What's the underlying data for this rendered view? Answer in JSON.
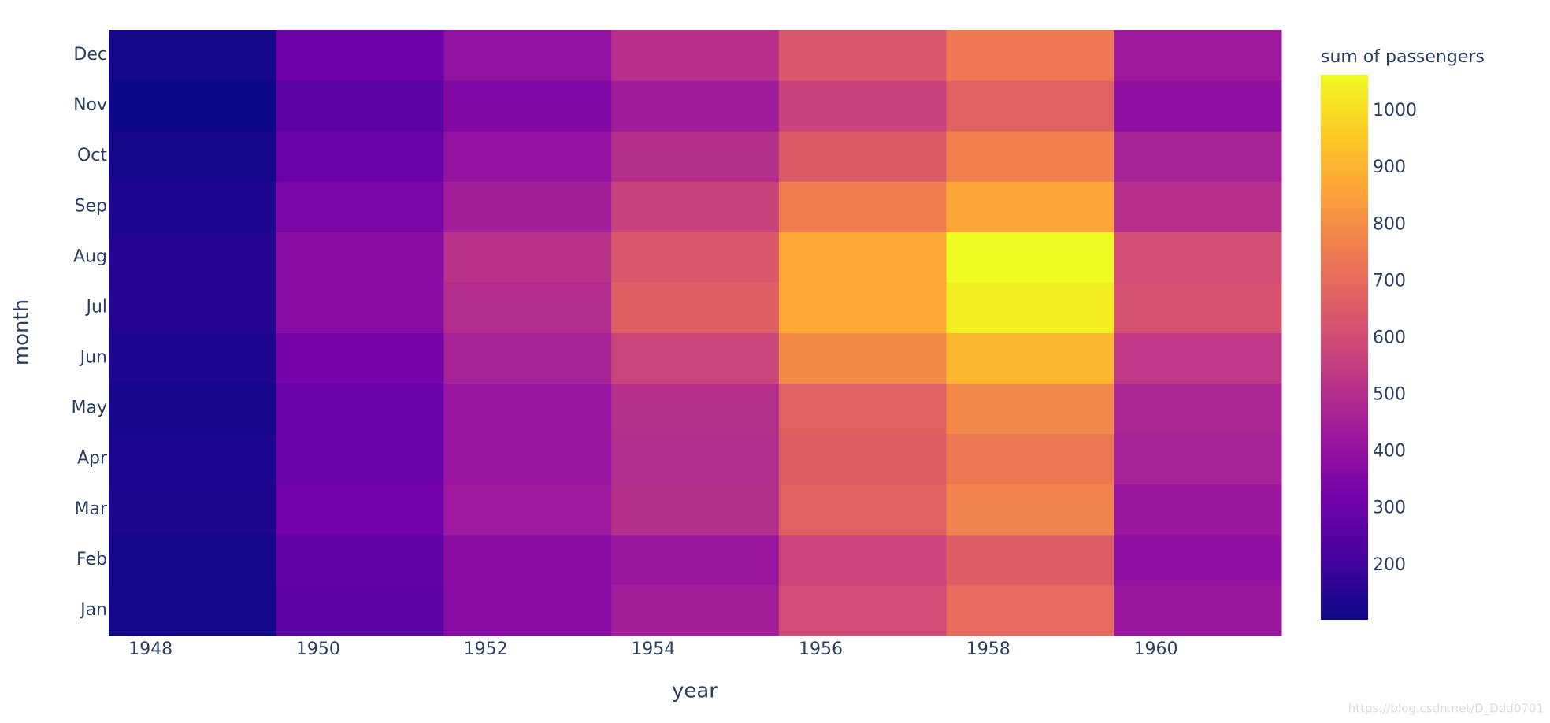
{
  "chart_data": {
    "type": "heatmap",
    "x_label": "year",
    "y_label": "month",
    "colorbar_title": "sum of passengers",
    "watermark": "https://blog.csdn.net/D_Ddd0701",
    "xbins": [
      1947.5,
      1949.5,
      1951.5,
      1953.5,
      1955.5,
      1957.5,
      1959.5,
      1961.5
    ],
    "xlim": [
      1947.5,
      1961.5
    ],
    "xticks": [
      1948,
      1950,
      1952,
      1954,
      1956,
      1958,
      1960
    ],
    "categories": [
      "Jan",
      "Feb",
      "Mar",
      "Apr",
      "May",
      "Jun",
      "Jul",
      "Aug",
      "Sep",
      "Oct",
      "Nov",
      "Dec"
    ],
    "z": [
      [
        112,
        260,
        367,
        446,
        599,
        700,
        417
      ],
      [
        118,
        276,
        376,
        421,
        578,
        660,
        391
      ],
      [
        132,
        319,
        429,
        502,
        673,
        768,
        419
      ],
      [
        129,
        298,
        416,
        496,
        661,
        744,
        461
      ],
      [
        121,
        297,
        412,
        504,
        673,
        783,
        472
      ],
      [
        135,
        327,
        461,
        579,
        796,
        907,
        535
      ],
      [
        148,
        369,
        494,
        666,
        878,
        1039,
        622
      ],
      [
        148,
        369,
        514,
        640,
        872,
        1064,
        606
      ],
      [
        136,
        342,
        446,
        571,
        759,
        867,
        508
      ],
      [
        119,
        295,
        402,
        503,
        653,
        766,
        461
      ],
      [
        104,
        260,
        352,
        440,
        576,
        672,
        390
      ],
      [
        118,
        306,
        395,
        507,
        642,
        742,
        432
      ]
    ],
    "zlim": [
      104,
      1064
    ],
    "zticks": [
      200,
      300,
      400,
      500,
      600,
      700,
      800,
      900,
      1000
    ],
    "colorscale": [
      "#0d0887",
      "#46039f",
      "#7201a8",
      "#9c179e",
      "#bd3786",
      "#d8576b",
      "#ed7953",
      "#fb9f3a",
      "#fdca26",
      "#f0f921"
    ]
  }
}
